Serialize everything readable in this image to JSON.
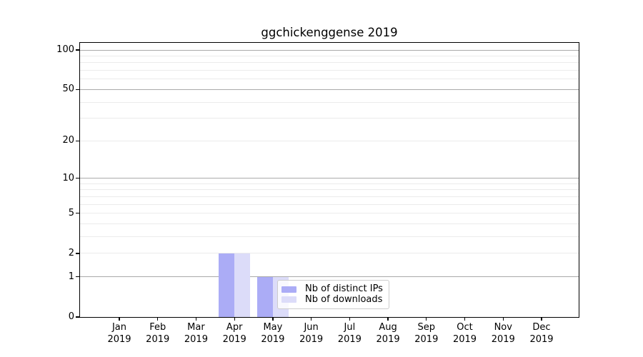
{
  "chart_data": {
    "type": "bar",
    "title": "ggchickenggense 2019",
    "categories": [
      "Jan",
      "Feb",
      "Mar",
      "Apr",
      "May",
      "Jun",
      "Jul",
      "Aug",
      "Sep",
      "Oct",
      "Nov",
      "Dec"
    ],
    "x_year": "2019",
    "series": [
      {
        "name": "Nb of distinct IPs",
        "color": "#abacf6",
        "values": [
          0,
          0,
          0,
          2,
          1,
          0,
          0,
          0,
          0,
          0,
          0,
          0
        ]
      },
      {
        "name": "Nb of downloads",
        "color": "#dcdcf9",
        "values": [
          0,
          0,
          0,
          2,
          1,
          0,
          0,
          0,
          0,
          0,
          0,
          0
        ]
      }
    ],
    "y_ticks": [
      0,
      1,
      2,
      5,
      10,
      20,
      50,
      100
    ],
    "y_scale": "log10(value+1)",
    "ylim": [
      0,
      113
    ],
    "xlabel": "",
    "ylabel": "",
    "grid": "horizontal",
    "minor_gridlines": [
      2,
      3,
      4,
      5,
      6,
      7,
      8,
      9,
      20,
      30,
      40,
      60,
      70,
      80,
      90
    ],
    "major_gridlines": [
      1,
      10,
      50,
      100
    ],
    "legend": {
      "position": "lower-center",
      "entries": [
        "Nb of distinct IPs",
        "Nb of downloads"
      ]
    },
    "colors": {
      "background": "#ffffff",
      "spine": "#000000",
      "text": "#000000",
      "minor_grid": "#ebebeb",
      "major_grid": "#aaaaaa"
    }
  }
}
